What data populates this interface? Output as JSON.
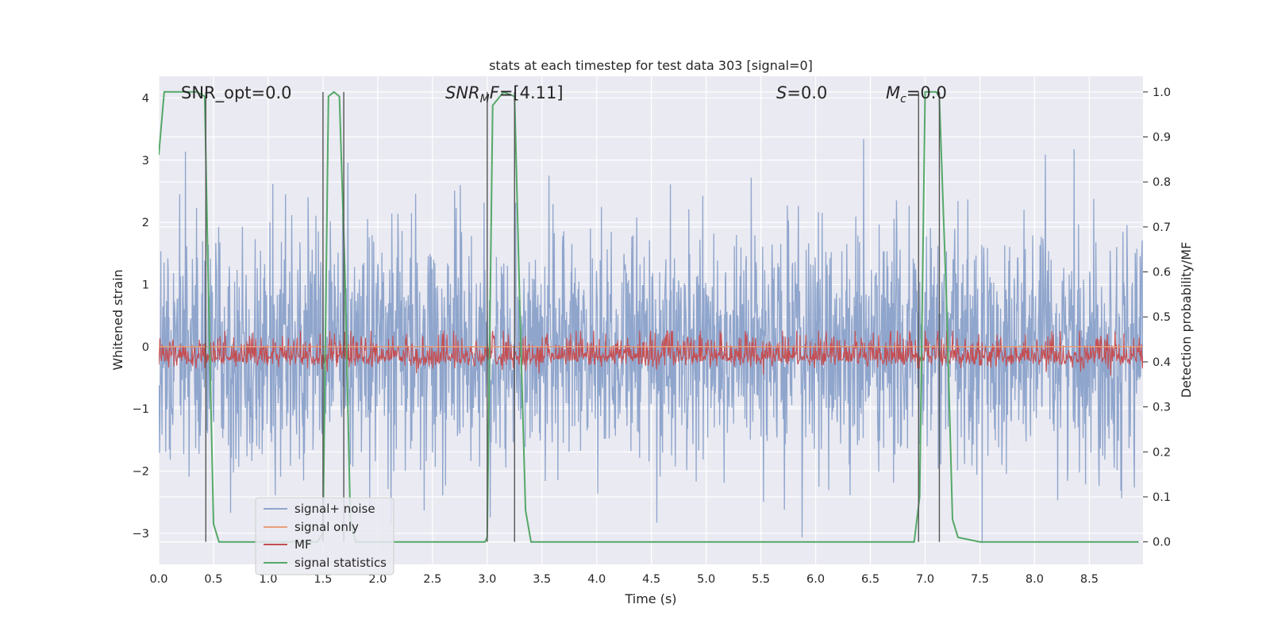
{
  "chart_data": {
    "type": "line",
    "title": "stats at each timestep for test data 303 [signal=0]",
    "xlabel": "Time (s)",
    "ylabel_left": "Whitened strain",
    "ylabel_right": "Detection probability/MF",
    "xlim": [
      0.0,
      8.99
    ],
    "ylim_left": [
      -3.5,
      4.35
    ],
    "ylim_right": [
      -0.05,
      1.035
    ],
    "x_ticks": [
      "0.0",
      "0.5",
      "1.0",
      "1.5",
      "2.0",
      "2.5",
      "3.0",
      "3.5",
      "4.0",
      "4.5",
      "5.0",
      "5.5",
      "6.0",
      "6.5",
      "7.0",
      "7.5",
      "8.0",
      "8.5"
    ],
    "y_left_ticks": [
      "4",
      "3",
      "2",
      "1",
      "0",
      "−1",
      "−2",
      "−3"
    ],
    "y_right_ticks": [
      "1.0",
      "0.9",
      "0.8",
      "0.7",
      "0.6",
      "0.5",
      "0.4",
      "0.3",
      "0.2",
      "0.1",
      "0.0"
    ],
    "grid": true,
    "legend_position": "lower-left",
    "annotations": {
      "snr_opt": "SNR_opt=0.0",
      "snr_mf_italic": "SNR",
      "snr_mf_sub": "M",
      "snr_mf_rest_italic": "F",
      "snr_mf_value": "=[4.11]",
      "s_italic": "S",
      "s_value": "=0.0",
      "mc_italic": "M",
      "mc_sub": "c",
      "mc_value": "=0.0"
    },
    "series": [
      {
        "name": "signal+ noise",
        "color": "#8fa5cc",
        "description_stats": {
          "mean": 0.0,
          "std": 1.0,
          "max_peak": 3.4,
          "min_peak": -3.2
        }
      },
      {
        "name": "signal only",
        "color": "#e8a07a",
        "values_note": "zero"
      },
      {
        "name": "MF",
        "color": "#c44e52",
        "band": {
          "low": 0.0,
          "high": 0.65,
          "center": 0.3
        }
      },
      {
        "name": "signal statistics",
        "color": "#55a868",
        "x": [
          0.0,
          0.05,
          0.35,
          0.42,
          0.45,
          0.5,
          0.55,
          1.45,
          1.5,
          1.55,
          1.6,
          1.65,
          1.7,
          1.75,
          1.8,
          2.98,
          3.0,
          3.05,
          3.15,
          3.25,
          3.3,
          3.35,
          3.4,
          6.9,
          6.95,
          7.0,
          7.1,
          7.13,
          7.2,
          7.25,
          7.3,
          7.5,
          8.95
        ],
        "y": [
          0.86,
          1.0,
          1.0,
          0.99,
          0.6,
          0.04,
          0.0,
          0.0,
          0.02,
          0.99,
          1.0,
          0.99,
          0.6,
          0.05,
          0.0,
          0.0,
          0.01,
          0.97,
          1.0,
          0.99,
          0.5,
          0.07,
          0.0,
          0.0,
          0.1,
          1.0,
          1.0,
          0.99,
          0.5,
          0.05,
          0.01,
          0.0,
          0.0
        ]
      }
    ],
    "vertical_lines_x": [
      0.43,
      1.5,
      1.69,
      3.0,
      3.25,
      6.94,
      7.13
    ]
  }
}
